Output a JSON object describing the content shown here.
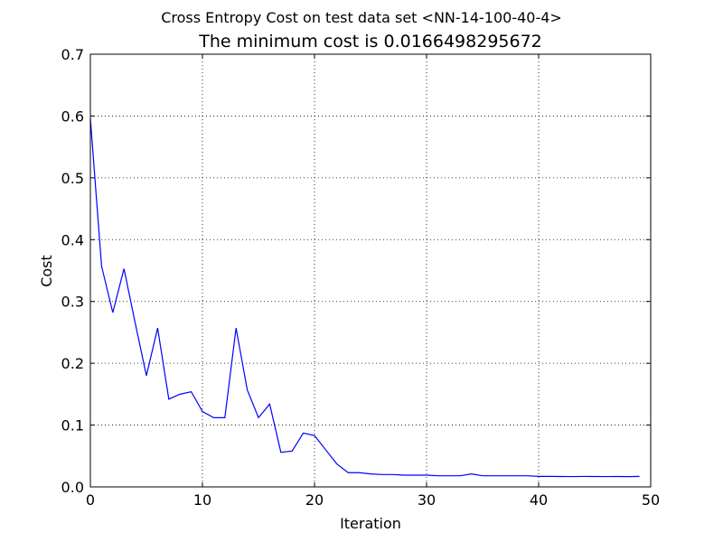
{
  "chart_data": {
    "type": "line",
    "suptitle": "Cross Entropy Cost on test data set <NN-14-100-40-4>",
    "title": "The minimum cost is 0.0166498295672",
    "xlabel": "Iteration",
    "ylabel": "Cost",
    "xlim": [
      0,
      50
    ],
    "ylim": [
      0,
      0.7
    ],
    "xticks": [
      0,
      10,
      20,
      30,
      40,
      50
    ],
    "xtick_labels": [
      "0",
      "10",
      "20",
      "30",
      "40",
      "50"
    ],
    "yticks": [
      0.0,
      0.1,
      0.2,
      0.3,
      0.4,
      0.5,
      0.6,
      0.7
    ],
    "ytick_labels": [
      "0.0",
      "0.1",
      "0.2",
      "0.3",
      "0.4",
      "0.5",
      "0.6",
      "0.7"
    ],
    "grid": true,
    "series": [
      {
        "color": "#0000ff",
        "x": [
          0,
          1,
          2,
          3,
          4,
          5,
          6,
          7,
          8,
          9,
          10,
          11,
          12,
          13,
          14,
          15,
          16,
          17,
          18,
          19,
          20,
          21,
          22,
          23,
          24,
          25,
          26,
          27,
          28,
          29,
          30,
          31,
          32,
          33,
          34,
          35,
          36,
          37,
          38,
          39,
          40,
          41,
          42,
          43,
          44,
          45,
          46,
          47,
          48,
          49
        ],
        "y": [
          0.596,
          0.357,
          0.282,
          0.353,
          0.265,
          0.18,
          0.257,
          0.142,
          0.15,
          0.154,
          0.122,
          0.112,
          0.112,
          0.257,
          0.157,
          0.112,
          0.134,
          0.056,
          0.058,
          0.087,
          0.083,
          0.06,
          0.037,
          0.023,
          0.023,
          0.021,
          0.02,
          0.02,
          0.019,
          0.019,
          0.019,
          0.018,
          0.018,
          0.018,
          0.021,
          0.018,
          0.018,
          0.018,
          0.018,
          0.018,
          0.017,
          0.017,
          0.0168,
          0.0167,
          0.0169,
          0.0168,
          0.0167,
          0.0168,
          0.0166,
          0.017
        ]
      }
    ]
  }
}
